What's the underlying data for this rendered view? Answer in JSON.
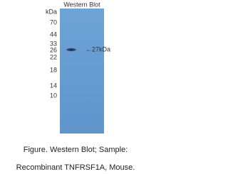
{
  "blot": {
    "title": "Western Blot",
    "unit": "kDa",
    "markers": [
      "70",
      "44",
      "33",
      "26",
      "22",
      "18",
      "14",
      "10"
    ],
    "band_label": "←27kDa"
  },
  "caption": {
    "lines": [
      "Figure. Western Blot; Sample:",
      "Recombinant TNFRSF1A, Mouse."
    ]
  }
}
